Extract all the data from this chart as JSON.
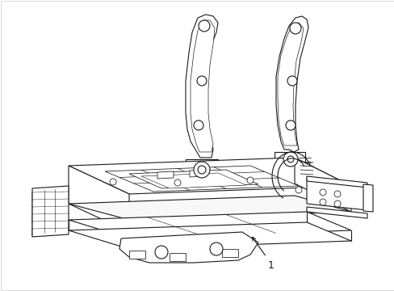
{
  "background_color": "#ffffff",
  "line_color": "#1a1a1a",
  "line_width": 0.8,
  "fig_width": 4.89,
  "fig_height": 3.6,
  "dpi": 100,
  "label_text": "1",
  "label_fontsize": 9,
  "border_color": "#cccccc"
}
